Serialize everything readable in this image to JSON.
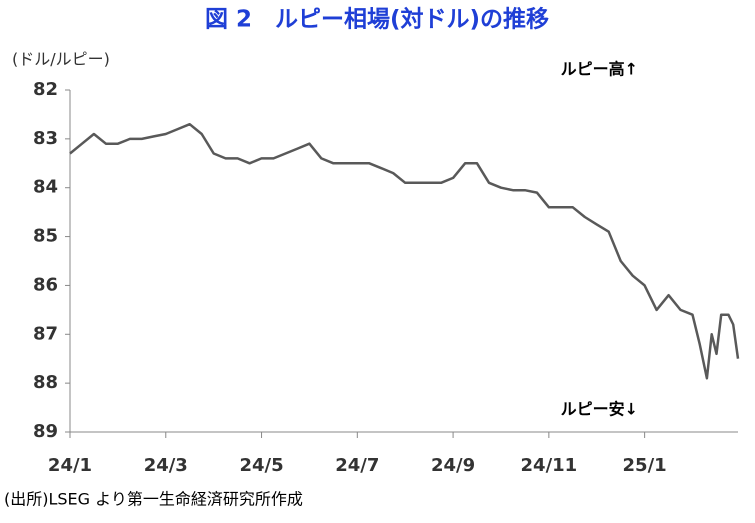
{
  "chart_data": {
    "type": "line",
    "title": "図 2　ルピー相場(対ドル)の推移",
    "y_axis_label": "(ドル/ルピー)",
    "annotations": [
      "ルピー高↑",
      "ルピー安↓"
    ],
    "source": "(出所)LSEG より第一生命経済研究所作成",
    "x": [
      0,
      0.25,
      0.5,
      0.75,
      1.0,
      1.25,
      1.5,
      1.75,
      2.0,
      2.25,
      2.5,
      2.75,
      3.0,
      3.25,
      3.5,
      3.75,
      4.0,
      4.25,
      4.5,
      4.75,
      5.0,
      5.25,
      5.5,
      5.75,
      6.0,
      6.25,
      6.5,
      6.75,
      7.0,
      7.25,
      7.5,
      7.75,
      8.0,
      8.25,
      8.5,
      8.75,
      9.0,
      9.25,
      9.5,
      9.75,
      10.0,
      10.25,
      10.5,
      10.75,
      11.0,
      11.25,
      11.5,
      11.75,
      12.0,
      12.25,
      12.5,
      12.75,
      13.0,
      13.15,
      13.3,
      13.4,
      13.5,
      13.6,
      13.75,
      13.85,
      13.95
    ],
    "values": [
      83.3,
      83.1,
      82.9,
      83.1,
      83.1,
      83.0,
      83.0,
      82.95,
      82.9,
      82.8,
      82.7,
      82.9,
      83.3,
      83.4,
      83.4,
      83.5,
      83.4,
      83.4,
      83.3,
      83.2,
      83.1,
      83.4,
      83.5,
      83.5,
      83.5,
      83.5,
      83.6,
      83.7,
      83.9,
      83.9,
      83.9,
      83.9,
      83.8,
      83.5,
      83.5,
      83.9,
      84.0,
      84.05,
      84.05,
      84.1,
      84.4,
      84.4,
      84.4,
      84.6,
      84.75,
      84.9,
      85.5,
      85.8,
      86.0,
      86.5,
      86.2,
      86.5,
      86.6,
      87.2,
      87.9,
      87.0,
      87.4,
      86.6,
      86.6,
      86.8,
      87.5
    ],
    "color": "#595959",
    "xlim": [
      0,
      13.95
    ],
    "xticks": [
      {
        "value": 0,
        "label": "24/1"
      },
      {
        "value": 2,
        "label": "24/3"
      },
      {
        "value": 4,
        "label": "24/5"
      },
      {
        "value": 6,
        "label": "24/7"
      },
      {
        "value": 8,
        "label": "24/9"
      },
      {
        "value": 10,
        "label": "24/11"
      },
      {
        "value": 12,
        "label": "25/1"
      }
    ],
    "ylim": [
      82,
      89
    ],
    "yticks": [
      82,
      83,
      84,
      85,
      86,
      87,
      88,
      89
    ],
    "y_inverted": true
  }
}
